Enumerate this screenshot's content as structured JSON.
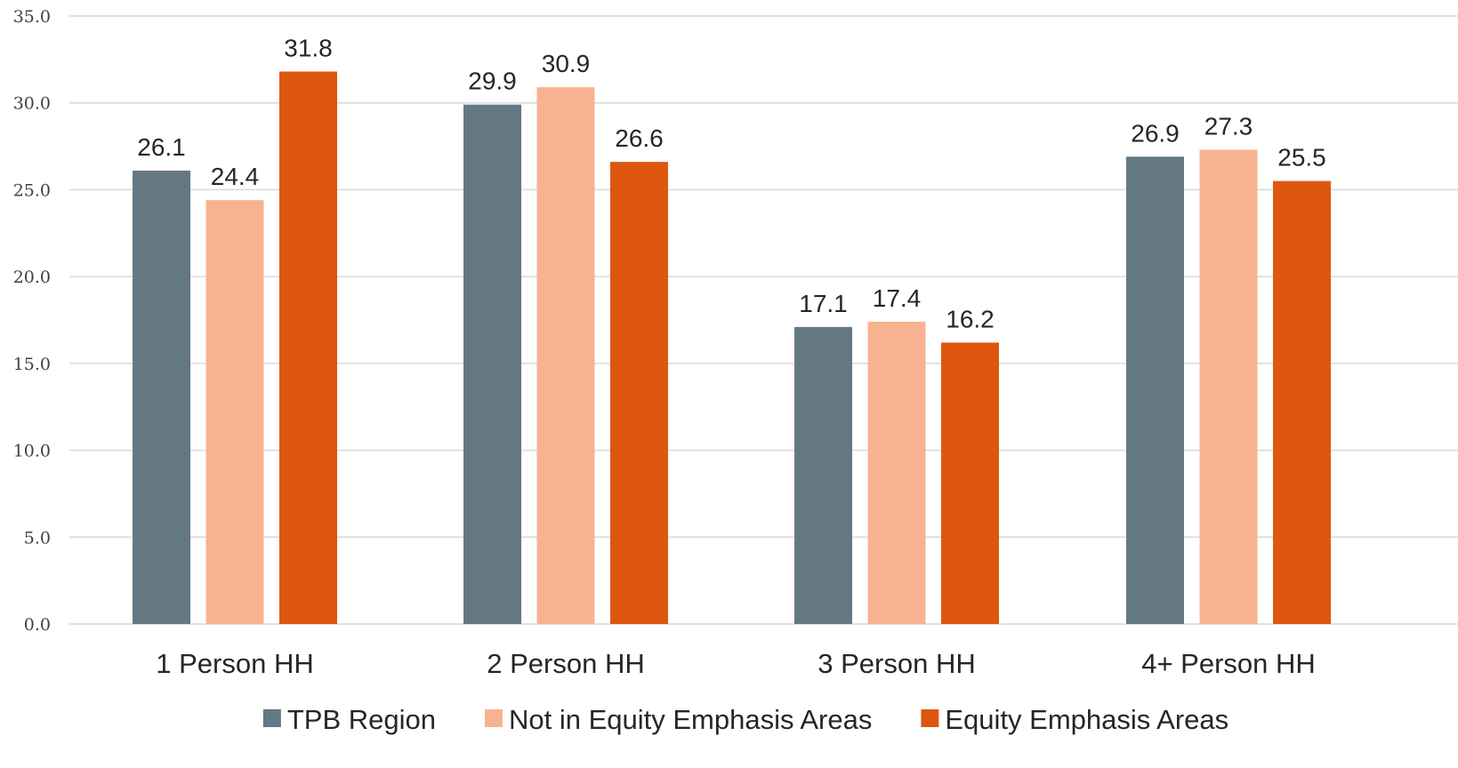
{
  "chart_data": {
    "type": "bar",
    "categories": [
      "1 Person HH",
      "2 Person HH",
      "3 Person HH",
      "4+ Person HH"
    ],
    "series": [
      {
        "name": "TPB Region",
        "color": "#647883",
        "values": [
          26.1,
          29.9,
          17.1,
          26.9
        ]
      },
      {
        "name": "Not in Equity Emphasis Areas",
        "color": "#F7B390",
        "values": [
          24.4,
          30.9,
          17.4,
          27.3
        ]
      },
      {
        "name": "Equity Emphasis Areas",
        "color": "#DE570F",
        "values": [
          31.8,
          26.6,
          16.2,
          25.5
        ]
      }
    ],
    "ylim": [
      0,
      35
    ],
    "yticks": [
      "0.0",
      "5.0",
      "10.0",
      "15.0",
      "20.0",
      "25.0",
      "30.0",
      "35.0"
    ],
    "grid": true,
    "legend_position": "bottom",
    "title": "",
    "xlabel": "",
    "ylabel": ""
  }
}
